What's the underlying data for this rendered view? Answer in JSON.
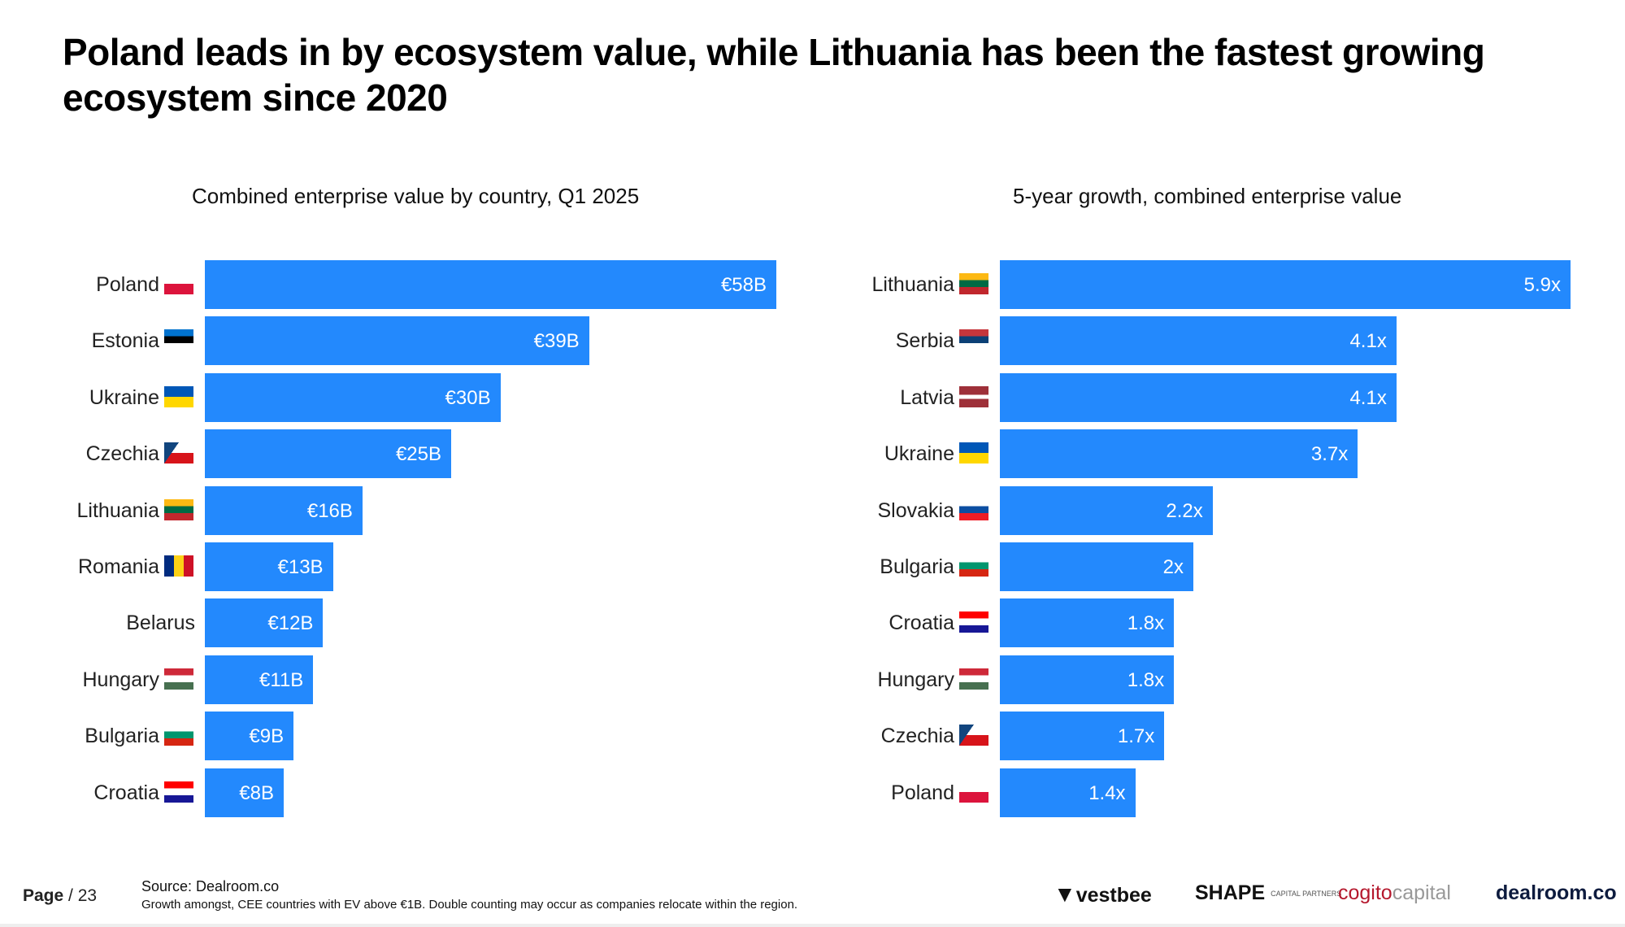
{
  "title": "Poland leads in by ecosystem value, while Lithuania has been the fastest growing ecosystem since 2020",
  "chart_data": [
    {
      "type": "bar",
      "orientation": "horizontal",
      "title": "Combined enterprise value by country, Q1 2025",
      "categories": [
        "Poland",
        "Estonia",
        "Ukraine",
        "Czechia",
        "Lithuania",
        "Romania",
        "Belarus",
        "Hungary",
        "Bulgaria",
        "Croatia"
      ],
      "values": [
        58,
        39,
        30,
        25,
        16,
        13,
        12,
        11,
        9,
        8
      ],
      "value_labels": [
        "€58B",
        "€39B",
        "€30B",
        "€25B",
        "€16B",
        "€13B",
        "€12B",
        "€11B",
        "€9B",
        "€8B"
      ],
      "unit": "€B",
      "xlim": [
        0,
        58
      ],
      "color": "#2389fd"
    },
    {
      "type": "bar",
      "orientation": "horizontal",
      "title": "5-year growth, combined enterprise value",
      "categories": [
        "Lithuania",
        "Serbia",
        "Latvia",
        "Ukraine",
        "Slovakia",
        "Bulgaria",
        "Croatia",
        "Hungary",
        "Czechia",
        "Poland"
      ],
      "values": [
        5.9,
        4.1,
        4.1,
        3.7,
        2.2,
        2,
        1.8,
        1.8,
        1.7,
        1.4
      ],
      "value_labels": [
        "5.9x",
        "4.1x",
        "4.1x",
        "3.7x",
        "2.2x",
        "2x",
        "1.8x",
        "1.8x",
        "1.7x",
        "1.4x"
      ],
      "unit": "x",
      "xlim": [
        0,
        5.9
      ],
      "color": "#2389fd"
    }
  ],
  "footer": {
    "page_label": "Page",
    "page_number": "/ 23",
    "source": "Source:  Dealroom.co",
    "note": "Growth amongst, CEE countries with EV above €1B. Double counting may occur as companies relocate within the region.",
    "logos": [
      "vestbee",
      "SHAPE",
      "CAPITAL PARTNERS",
      "cogito",
      "capital",
      "dealroom.co"
    ]
  }
}
